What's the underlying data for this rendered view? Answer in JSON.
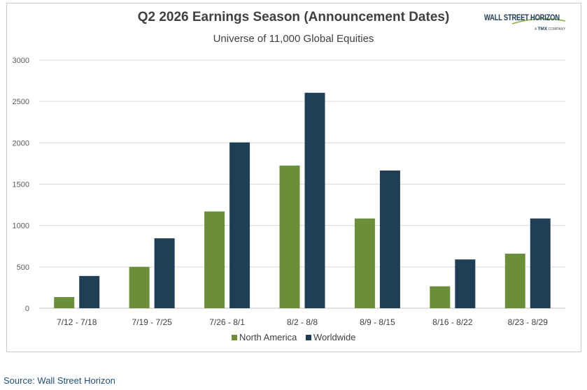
{
  "chart_data": {
    "type": "bar",
    "title": "Q2 2026 Earnings Season (Announcement Dates)",
    "subtitle": "Universe of 11,000 Global Equities",
    "categories": [
      "7/12 - 7/18",
      "7/19 - 7/25",
      "7/26 - 8/1",
      "8/2 - 8/8",
      "8/9 - 8/15",
      "8/16 - 8/22",
      "8/23 - 8/29"
    ],
    "series": [
      {
        "name": "North America",
        "color": "#6b8e3a",
        "values": [
          135,
          500,
          1170,
          1725,
          1085,
          265,
          660
        ]
      },
      {
        "name": "Worldwide",
        "color": "#1f3f57",
        "values": [
          390,
          845,
          2005,
          2605,
          1665,
          590,
          1085
        ]
      }
    ],
    "yticks": [
      "0",
      "500",
      "1000",
      "1500",
      "2000",
      "2500",
      "3000"
    ],
    "ylim": [
      0,
      3000
    ],
    "grid": true,
    "legend": "bottom",
    "xlabel": "",
    "ylabel": ""
  },
  "logo": {
    "name": "WALL STREET HORIZON",
    "tagline_prefix": "A",
    "tagline_brand": "TMX",
    "tagline_suffix": "COMPANY"
  },
  "source": "Source: Wall Street Horizon"
}
